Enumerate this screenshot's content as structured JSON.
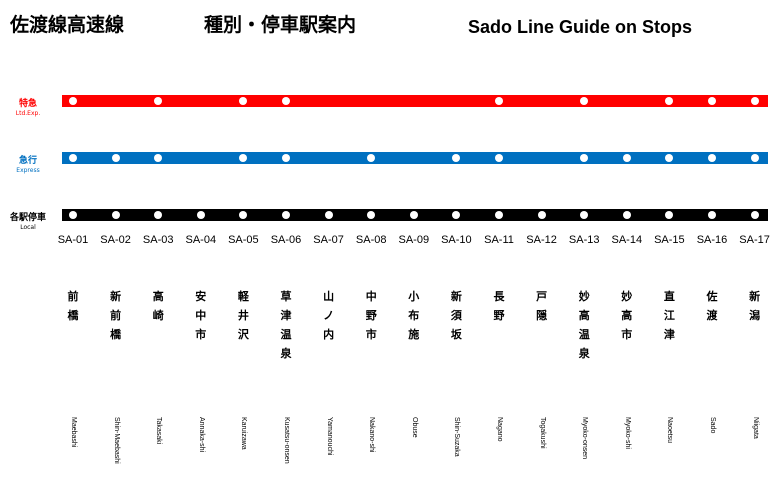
{
  "header": {
    "line_name": "佐渡線高速線",
    "subtitle_jp": "種別・停車駅案内",
    "title_en": "Sado Line Guide on Stops"
  },
  "services": [
    {
      "id": "ltd",
      "name_jp": "特急",
      "name_en": "Ltd.Exp.",
      "color": "#ff0000",
      "label_color": "#ff0000",
      "stops": [
        true,
        false,
        true,
        false,
        true,
        true,
        false,
        false,
        false,
        false,
        true,
        false,
        true,
        false,
        true,
        true,
        true
      ]
    },
    {
      "id": "exp",
      "name_jp": "急行",
      "name_en": "Express",
      "color": "#0070c0",
      "label_color": "#0070c0",
      "stops": [
        true,
        true,
        true,
        false,
        true,
        true,
        false,
        true,
        false,
        true,
        true,
        false,
        true,
        true,
        true,
        true,
        true
      ]
    },
    {
      "id": "local",
      "name_jp": "各駅停車",
      "name_en": "Local",
      "color": "#000000",
      "label_color": "#000000",
      "stops": [
        true,
        true,
        true,
        true,
        true,
        true,
        true,
        true,
        true,
        true,
        true,
        true,
        true,
        true,
        true,
        true,
        true
      ]
    }
  ],
  "stations": [
    {
      "code": "SA-01",
      "name_jp": "前橋",
      "name_en": "Maebashi"
    },
    {
      "code": "SA-02",
      "name_jp": "新前橋",
      "name_en": "Shin-Maebashi"
    },
    {
      "code": "SA-03",
      "name_jp": "高崎",
      "name_en": "Takasaki"
    },
    {
      "code": "SA-04",
      "name_jp": "安中市",
      "name_en": "Annaka-shi"
    },
    {
      "code": "SA-05",
      "name_jp": "軽井沢",
      "name_en": "Karuizawa"
    },
    {
      "code": "SA-06",
      "name_jp": "草津温泉",
      "name_en": "Kusatsu-onsen"
    },
    {
      "code": "SA-07",
      "name_jp": "山ノ内",
      "name_en": "Yamanouchi"
    },
    {
      "code": "SA-08",
      "name_jp": "中野市",
      "name_en": "Nakano-shi"
    },
    {
      "code": "SA-09",
      "name_jp": "小布施",
      "name_en": "Obuse"
    },
    {
      "code": "SA-10",
      "name_jp": "新須坂",
      "name_en": "Shin-Suzaka"
    },
    {
      "code": "SA-11",
      "name_jp": "長野",
      "name_en": "Nagano"
    },
    {
      "code": "SA-12",
      "name_jp": "戸隠",
      "name_en": "Togakushi"
    },
    {
      "code": "SA-13",
      "name_jp": "妙高温泉",
      "name_en": "Myoko-onsen"
    },
    {
      "code": "SA-14",
      "name_jp": "妙高市",
      "name_en": "Myoko-shi"
    },
    {
      "code": "SA-15",
      "name_jp": "直江津",
      "name_en": "Naoetsu"
    },
    {
      "code": "SA-16",
      "name_jp": "佐渡",
      "name_en": "Sado"
    },
    {
      "code": "SA-17",
      "name_jp": "新潟",
      "name_en": "Niigata"
    }
  ]
}
